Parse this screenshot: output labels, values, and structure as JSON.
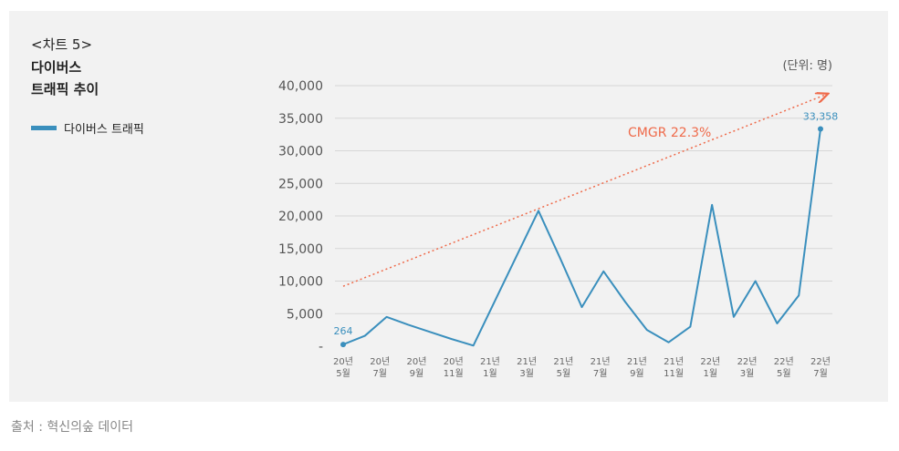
{
  "header": {
    "chart_tag": "<차트 5>",
    "title_line1": "다이버스",
    "title_line2": "트래픽 추이"
  },
  "legend": {
    "label": "다이버스 트래픽"
  },
  "source": "출처 : 혁신의숲 데이터",
  "colors": {
    "series": "#3a8fbd",
    "trend": "#ef6a4a",
    "panel": "#f2f2f2",
    "grid": "#d6d6d6"
  },
  "chart_data": {
    "type": "line",
    "unit_label": "(단위: 명)",
    "ylim": [
      0,
      40000
    ],
    "y_ticks": [
      "-",
      "5,000",
      "10,000",
      "15,000",
      "20,000",
      "25,000",
      "30,000",
      "35,000",
      "40,000"
    ],
    "x_ticks": [
      {
        "top": "20년",
        "bottom": "5월"
      },
      {
        "top": "20년",
        "bottom": "7월"
      },
      {
        "top": "20년",
        "bottom": "9월"
      },
      {
        "top": "20년",
        "bottom": "11월"
      },
      {
        "top": "21년",
        "bottom": "1월"
      },
      {
        "top": "21년",
        "bottom": "3월"
      },
      {
        "top": "21년",
        "bottom": "5월"
      },
      {
        "top": "21년",
        "bottom": "7월"
      },
      {
        "top": "21년",
        "bottom": "9월"
      },
      {
        "top": "21년",
        "bottom": "11월"
      },
      {
        "top": "22년",
        "bottom": "1월"
      },
      {
        "top": "22년",
        "bottom": "3월"
      },
      {
        "top": "22년",
        "bottom": "5월"
      },
      {
        "top": "22년",
        "bottom": "7월"
      }
    ],
    "series": [
      {
        "name": "다이버스 트래픽",
        "values": [
          264,
          1600,
          4500,
          3300,
          2200,
          1100,
          100,
          7000,
          13900,
          20800,
          13500,
          6000,
          11500,
          6800,
          2500,
          600,
          3000,
          21700,
          4500,
          10000,
          3500,
          7800,
          33358
        ]
      }
    ],
    "trend": {
      "label": "CMGR 22.3%",
      "start_value": 9200,
      "end_value": 38700
    },
    "data_labels": [
      "264",
      "33,358"
    ],
    "grid": true
  }
}
